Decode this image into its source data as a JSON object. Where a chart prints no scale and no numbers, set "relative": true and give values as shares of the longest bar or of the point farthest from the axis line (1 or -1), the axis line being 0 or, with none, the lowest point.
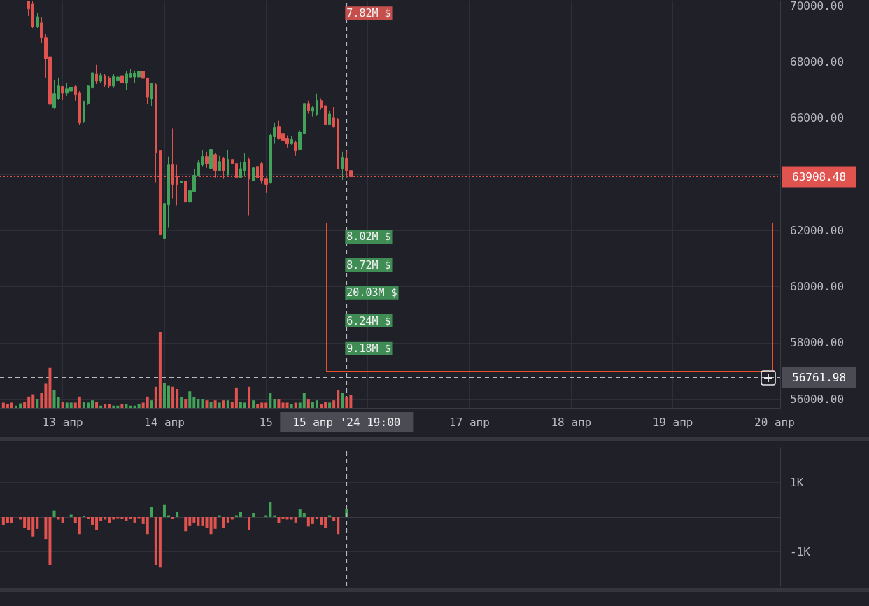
{
  "chart_data": [
    {
      "type": "candlestick",
      "x": [
        "2024-04-12T16:00",
        "2024-04-12T17:00",
        "2024-04-12T18:00",
        "2024-04-12T19:00",
        "2024-04-12T20:00",
        "2024-04-12T21:00",
        "2024-04-12T22:00",
        "2024-04-12T23:00",
        "2024-04-13T00:00",
        "2024-04-13T01:00",
        "2024-04-13T02:00",
        "2024-04-13T03:00",
        "2024-04-13T04:00",
        "2024-04-13T05:00",
        "2024-04-13T06:00",
        "2024-04-13T07:00",
        "2024-04-13T08:00",
        "2024-04-13T09:00",
        "2024-04-13T10:00",
        "2024-04-13T11:00",
        "2024-04-13T12:00",
        "2024-04-13T13:00",
        "2024-04-13T14:00",
        "2024-04-13T15:00",
        "2024-04-13T16:00",
        "2024-04-13T17:00",
        "2024-04-13T18:00",
        "2024-04-13T19:00",
        "2024-04-13T20:00",
        "2024-04-13T21:00",
        "2024-04-13T22:00",
        "2024-04-13T23:00",
        "2024-04-14T00:00",
        "2024-04-14T01:00",
        "2024-04-14T02:00",
        "2024-04-14T03:00",
        "2024-04-14T04:00",
        "2024-04-14T05:00",
        "2024-04-14T06:00",
        "2024-04-14T07:00",
        "2024-04-14T08:00",
        "2024-04-14T09:00",
        "2024-04-14T10:00",
        "2024-04-14T11:00",
        "2024-04-14T12:00",
        "2024-04-14T13:00",
        "2024-04-14T14:00",
        "2024-04-14T15:00",
        "2024-04-14T16:00",
        "2024-04-14T17:00",
        "2024-04-14T18:00",
        "2024-04-14T19:00",
        "2024-04-14T20:00",
        "2024-04-14T21:00",
        "2024-04-14T22:00",
        "2024-04-14T23:00",
        "2024-04-15T00:00",
        "2024-04-15T01:00",
        "2024-04-15T02:00",
        "2024-04-15T03:00",
        "2024-04-15T04:00",
        "2024-04-15T05:00",
        "2024-04-15T06:00",
        "2024-04-15T07:00",
        "2024-04-15T08:00",
        "2024-04-15T09:00",
        "2024-04-15T10:00",
        "2024-04-15T11:00",
        "2024-04-15T12:00",
        "2024-04-15T13:00",
        "2024-04-15T14:00",
        "2024-04-15T15:00",
        "2024-04-15T16:00",
        "2024-04-15T17:00",
        "2024-04-15T18:00",
        "2024-04-15T19:00",
        "2024-04-15T20:00"
      ],
      "ohlc": [
        [
          70150,
          70150,
          69630,
          69880
        ],
        [
          70050,
          70150,
          69200,
          69250
        ],
        [
          69250,
          69730,
          69200,
          69600
        ],
        [
          69380,
          69600,
          68680,
          68860
        ],
        [
          68860,
          68980,
          67440,
          68110
        ],
        [
          68180,
          68380,
          65030,
          66490
        ],
        [
          66370,
          67360,
          66320,
          66870
        ],
        [
          66690,
          67440,
          66640,
          67140
        ],
        [
          67120,
          67140,
          66640,
          66890
        ],
        [
          66890,
          67260,
          66790,
          67040
        ],
        [
          66960,
          67290,
          66770,
          67090
        ],
        [
          67120,
          67160,
          66620,
          66820
        ],
        [
          66890,
          66960,
          65750,
          65820
        ],
        [
          65870,
          66620,
          65820,
          66570
        ],
        [
          66520,
          67160,
          66470,
          67140
        ],
        [
          67070,
          67940,
          66990,
          67610
        ],
        [
          67560,
          67890,
          67210,
          67310
        ],
        [
          67310,
          67590,
          67240,
          67520
        ],
        [
          67510,
          67560,
          67110,
          67190
        ],
        [
          67430,
          67480,
          67060,
          67140
        ],
        [
          67140,
          67560,
          67070,
          67480
        ],
        [
          67320,
          67510,
          67290,
          67460
        ],
        [
          67510,
          67860,
          67240,
          67260
        ],
        [
          67240,
          67680,
          67000,
          67560
        ],
        [
          67460,
          67760,
          67420,
          67580
        ],
        [
          67460,
          67690,
          67250,
          67590
        ],
        [
          67460,
          67940,
          67360,
          67660
        ],
        [
          67670,
          67760,
          67360,
          67410
        ],
        [
          67410,
          67440,
          66490,
          66740
        ],
        [
          66690,
          67260,
          66440,
          67240
        ],
        [
          67190,
          67240,
          63710,
          64780
        ],
        [
          64830,
          64830,
          60620,
          61840
        ],
        [
          61720,
          63000,
          61640,
          62960
        ],
        [
          62910,
          64630,
          62090,
          64330
        ],
        [
          64330,
          65630,
          63140,
          63640
        ],
        [
          63910,
          64330,
          62890,
          63640
        ],
        [
          63700,
          64080,
          63260,
          63760
        ],
        [
          63760,
          63960,
          62960,
          63010
        ],
        [
          63010,
          63540,
          62100,
          63410
        ],
        [
          63380,
          64180,
          63380,
          63960
        ],
        [
          63960,
          64500,
          63910,
          64400
        ],
        [
          64330,
          64850,
          64280,
          64630
        ],
        [
          64630,
          64800,
          64230,
          64380
        ],
        [
          64210,
          64900,
          64200,
          64880
        ],
        [
          64700,
          64750,
          63880,
          64130
        ],
        [
          64130,
          64650,
          64100,
          64450
        ],
        [
          64560,
          64600,
          63830,
          64130
        ],
        [
          63980,
          64850,
          63930,
          64530
        ],
        [
          64530,
          64800,
          64330,
          64380
        ],
        [
          64380,
          64430,
          63380,
          63880
        ],
        [
          63880,
          64450,
          63850,
          64200
        ],
        [
          64130,
          64750,
          63910,
          64430
        ],
        [
          64530,
          64580,
          62540,
          63830
        ],
        [
          63760,
          64700,
          63760,
          64230
        ],
        [
          64280,
          64330,
          63780,
          63860
        ],
        [
          64380,
          64430,
          63660,
          63780
        ],
        [
          63830,
          63880,
          63330,
          63640
        ],
        [
          63710,
          65450,
          63660,
          65380
        ],
        [
          65330,
          65820,
          65080,
          65650
        ],
        [
          65700,
          65900,
          65230,
          65280
        ],
        [
          65450,
          65700,
          65000,
          65200
        ],
        [
          65280,
          65380,
          64950,
          65080
        ],
        [
          65080,
          65350,
          65050,
          65230
        ],
        [
          65130,
          65200,
          64650,
          64830
        ],
        [
          64880,
          65550,
          64880,
          65500
        ],
        [
          65450,
          66620,
          65380,
          66520
        ],
        [
          66520,
          66620,
          66150,
          66270
        ],
        [
          66240,
          66440,
          66050,
          66370
        ],
        [
          66120,
          66870,
          66070,
          66620
        ],
        [
          66620,
          66700,
          66300,
          66370
        ],
        [
          66440,
          66740,
          65750,
          65770
        ],
        [
          65770,
          66250,
          65750,
          66140
        ],
        [
          66020,
          66390,
          65650,
          65700
        ],
        [
          65950,
          66000,
          64200,
          64210
        ],
        [
          64210,
          64800,
          63800,
          64580
        ],
        [
          64560,
          64830,
          63880,
          64130
        ],
        [
          64130,
          64750,
          63310,
          63910
        ]
      ],
      "xlim": [
        "2024-04-12T09:12",
        "2024-04-20T01:20"
      ],
      "ylim": [
        55680,
        70170
      ],
      "xticks": [
        {
          "value": "2024-04-13",
          "label": "13 апр"
        },
        {
          "value": "2024-04-14",
          "label": "14 апр"
        },
        {
          "value": "2024-04-15",
          "label": "15"
        },
        {
          "value": "2024-04-16",
          "label": null
        },
        {
          "value": "2024-04-17",
          "label": "17 апр"
        },
        {
          "value": "2024-04-18",
          "label": "18 апр"
        },
        {
          "value": "2024-04-19",
          "label": "19 апр"
        },
        {
          "value": "2024-04-20",
          "label": "20 апр"
        }
      ],
      "yticks": [
        {
          "value": 56000,
          "label": "56000.00"
        },
        {
          "value": 58000,
          "label": "58000.00"
        },
        {
          "value": 60000,
          "label": "60000.00"
        },
        {
          "value": 62000,
          "label": "62000.00"
        },
        {
          "value": 64000,
          "label": null
        },
        {
          "value": 66000,
          "label": "66000.00"
        },
        {
          "value": 68000,
          "label": "68000.00"
        },
        {
          "value": 70000,
          "label": "70000.00"
        }
      ],
      "grid": true,
      "ref_lines": [
        {
          "axis": "y",
          "value": 63908.48,
          "label": "63908.48",
          "color": "#e0534f",
          "line_style": "dotted"
        },
        {
          "axis": "y",
          "value": 56761.98,
          "label": "56761.98",
          "color": "#b9bac0",
          "line_style": "dashed"
        },
        {
          "axis": "x",
          "value": "2024-04-15T19:00",
          "label": "15 апр '24 19:00",
          "color": "#b9bac0",
          "line_style": "dashed"
        }
      ],
      "annotations": [
        {
          "text": "7.82M $",
          "x": "2024-04-15T19:00",
          "y": 69730
        },
        {
          "text": "8.02M $",
          "x": "2024-04-15T19:00",
          "y": 61770
        },
        {
          "text": "8.72M $",
          "x": "2024-04-15T19:00",
          "y": 60770
        },
        {
          "text": "20.03M $",
          "x": "2024-04-15T19:00",
          "y": 59780
        },
        {
          "text": "6.24M $",
          "x": "2024-04-15T19:00",
          "y": 58780
        },
        {
          "text": "9.18M $",
          "x": "2024-04-15T19:00",
          "y": 57790
        }
      ]
    },
    {
      "type": "bar",
      "relative": true,
      "tick_labels": false,
      "x": [
        "2024-04-12T10:00",
        "2024-04-12T11:00",
        "2024-04-12T12:00",
        "2024-04-12T13:00",
        "2024-04-12T14:00",
        "2024-04-12T15:00",
        "2024-04-12T16:00",
        "2024-04-12T17:00",
        "2024-04-12T18:00",
        "2024-04-12T19:00",
        "2024-04-12T20:00",
        "2024-04-12T21:00",
        "2024-04-12T22:00",
        "2024-04-12T23:00",
        "2024-04-13T00:00",
        "2024-04-13T01:00",
        "2024-04-13T02:00",
        "2024-04-13T03:00",
        "2024-04-13T04:00",
        "2024-04-13T05:00",
        "2024-04-13T06:00",
        "2024-04-13T07:00",
        "2024-04-13T08:00",
        "2024-04-13T09:00",
        "2024-04-13T10:00",
        "2024-04-13T11:00",
        "2024-04-13T12:00",
        "2024-04-13T13:00",
        "2024-04-13T14:00",
        "2024-04-13T15:00",
        "2024-04-13T16:00",
        "2024-04-13T17:00",
        "2024-04-13T18:00",
        "2024-04-13T19:00",
        "2024-04-13T20:00",
        "2024-04-13T21:00",
        "2024-04-13T22:00",
        "2024-04-13T23:00",
        "2024-04-14T00:00",
        "2024-04-14T01:00",
        "2024-04-14T02:00",
        "2024-04-14T03:00",
        "2024-04-14T04:00",
        "2024-04-14T05:00",
        "2024-04-14T06:00",
        "2024-04-14T07:00",
        "2024-04-14T08:00",
        "2024-04-14T09:00",
        "2024-04-14T10:00",
        "2024-04-14T11:00",
        "2024-04-14T12:00",
        "2024-04-14T13:00",
        "2024-04-14T14:00",
        "2024-04-14T15:00",
        "2024-04-14T16:00",
        "2024-04-14T17:00",
        "2024-04-14T18:00",
        "2024-04-14T19:00",
        "2024-04-14T20:00",
        "2024-04-14T21:00",
        "2024-04-14T22:00",
        "2024-04-14T23:00",
        "2024-04-15T00:00",
        "2024-04-15T01:00",
        "2024-04-15T02:00",
        "2024-04-15T03:00",
        "2024-04-15T04:00",
        "2024-04-15T05:00",
        "2024-04-15T06:00",
        "2024-04-15T07:00",
        "2024-04-15T08:00",
        "2024-04-15T09:00",
        "2024-04-15T10:00",
        "2024-04-15T11:00",
        "2024-04-15T12:00",
        "2024-04-15T13:00",
        "2024-04-15T14:00",
        "2024-04-15T15:00",
        "2024-04-15T16:00",
        "2024-04-15T17:00",
        "2024-04-15T18:00",
        "2024-04-15T19:00",
        "2024-04-15T20:00"
      ],
      "xlim": [
        "2024-04-12T09:12",
        "2024-04-20T01:20"
      ],
      "values": [
        0.07,
        0.05,
        0.07,
        0.03,
        0.06,
        0.08,
        0.15,
        0.18,
        0.12,
        0.2,
        0.32,
        0.53,
        0.24,
        0.14,
        0.08,
        0.07,
        0.07,
        0.07,
        0.15,
        0.08,
        0.07,
        0.1,
        0.08,
        0.03,
        0.05,
        0.05,
        0.03,
        0.03,
        0.05,
        0.05,
        0.03,
        0.03,
        0.05,
        0.07,
        0.15,
        0.1,
        0.28,
        1,
        0.33,
        0.3,
        0.28,
        0.25,
        0.14,
        0.12,
        0.22,
        0.14,
        0.12,
        0.12,
        0.1,
        0.08,
        0.1,
        0.07,
        0.1,
        0.1,
        0.08,
        0.27,
        0.08,
        0.07,
        0.28,
        0.1,
        0.05,
        0.07,
        0.07,
        0.2,
        0.12,
        0.12,
        0.07,
        0.07,
        0.05,
        0.07,
        0.07,
        0.2,
        0.12,
        0.08,
        0.1,
        0.05,
        0.08,
        0.07,
        0.1,
        0.24,
        0.2,
        0.14,
        0.17
      ],
      "colors": [
        "#e0534f",
        "#e0534f",
        "#e0534f",
        "#43a25a",
        "#43a25a",
        "#e0534f",
        "#e0534f",
        "#e0534f",
        "#43a25a",
        "#e0534f",
        "#e0534f",
        "#e0534f",
        "#43a25a",
        "#43a25a",
        "#e0534f",
        "#43a25a",
        "#43a25a",
        "#e0534f",
        "#e0534f",
        "#43a25a",
        "#43a25a",
        "#43a25a",
        "#e0534f",
        "#43a25a",
        "#e0534f",
        "#e0534f",
        "#43a25a",
        "#43a25a",
        "#e0534f",
        "#43a25a",
        "#43a25a",
        "#43a25a",
        "#43a25a",
        "#e0534f",
        "#e0534f",
        "#43a25a",
        "#e0534f",
        "#e0534f",
        "#43a25a",
        "#43a25a",
        "#e0534f",
        "#e0534f",
        "#43a25a",
        "#e0534f",
        "#43a25a",
        "#43a25a",
        "#43a25a",
        "#43a25a",
        "#e0534f",
        "#43a25a",
        "#e0534f",
        "#43a25a",
        "#e0534f",
        "#43a25a",
        "#e0534f",
        "#e0534f",
        "#43a25a",
        "#43a25a",
        "#e0534f",
        "#43a25a",
        "#e0534f",
        "#e0534f",
        "#e0534f",
        "#43a25a",
        "#43a25a",
        "#e0534f",
        "#e0534f",
        "#e0534f",
        "#43a25a",
        "#e0534f",
        "#43a25a",
        "#43a25a",
        "#e0534f",
        "#43a25a",
        "#43a25a",
        "#e0534f",
        "#e0534f",
        "#43a25a",
        "#e0534f",
        "#e0534f",
        "#43a25a",
        "#e0534f",
        "#e0534f"
      ]
    },
    {
      "type": "bar",
      "tick_labels": "y",
      "grid": "y",
      "x": [
        "2024-04-12T10:00",
        "2024-04-12T11:00",
        "2024-04-12T12:00",
        "2024-04-12T13:00",
        "2024-04-12T14:00",
        "2024-04-12T15:00",
        "2024-04-12T16:00",
        "2024-04-12T17:00",
        "2024-04-12T18:00",
        "2024-04-12T19:00",
        "2024-04-12T20:00",
        "2024-04-12T21:00",
        "2024-04-12T22:00",
        "2024-04-12T23:00",
        "2024-04-13T00:00",
        "2024-04-13T01:00",
        "2024-04-13T02:00",
        "2024-04-13T03:00",
        "2024-04-13T04:00",
        "2024-04-13T05:00",
        "2024-04-13T06:00",
        "2024-04-13T07:00",
        "2024-04-13T08:00",
        "2024-04-13T09:00",
        "2024-04-13T10:00",
        "2024-04-13T11:00",
        "2024-04-13T12:00",
        "2024-04-13T13:00",
        "2024-04-13T14:00",
        "2024-04-13T15:00",
        "2024-04-13T16:00",
        "2024-04-13T17:00",
        "2024-04-13T18:00",
        "2024-04-13T19:00",
        "2024-04-13T20:00",
        "2024-04-13T21:00",
        "2024-04-13T22:00",
        "2024-04-13T23:00",
        "2024-04-14T00:00",
        "2024-04-14T01:00",
        "2024-04-14T02:00",
        "2024-04-14T03:00",
        "2024-04-14T04:00",
        "2024-04-14T05:00",
        "2024-04-14T06:00",
        "2024-04-14T07:00",
        "2024-04-14T08:00",
        "2024-04-14T09:00",
        "2024-04-14T10:00",
        "2024-04-14T11:00",
        "2024-04-14T12:00",
        "2024-04-14T13:00",
        "2024-04-14T14:00",
        "2024-04-14T15:00",
        "2024-04-14T16:00",
        "2024-04-14T17:00",
        "2024-04-14T18:00",
        "2024-04-14T19:00",
        "2024-04-14T20:00",
        "2024-04-14T21:00",
        "2024-04-14T22:00",
        "2024-04-14T23:00",
        "2024-04-15T00:00",
        "2024-04-15T01:00",
        "2024-04-15T02:00",
        "2024-04-15T03:00",
        "2024-04-15T04:00",
        "2024-04-15T05:00",
        "2024-04-15T06:00",
        "2024-04-15T07:00",
        "2024-04-15T08:00",
        "2024-04-15T09:00",
        "2024-04-15T10:00",
        "2024-04-15T11:00",
        "2024-04-15T12:00",
        "2024-04-15T13:00",
        "2024-04-15T14:00",
        "2024-04-15T15:00",
        "2024-04-15T16:00",
        "2024-04-15T17:00",
        "2024-04-15T18:00",
        "2024-04-15T19:00"
      ],
      "xlim": [
        "2024-04-12T09:12",
        "2024-04-20T01:20"
      ],
      "ylim": [
        -2000,
        2000
      ],
      "yticks": [
        {
          "value": -1000,
          "label": "-1K"
        },
        {
          "value": 1000,
          "label": "1K"
        }
      ],
      "values": [
        -220,
        -180,
        -180,
        null,
        -70,
        -310,
        -370,
        -560,
        -340,
        null,
        -630,
        -1390,
        190,
        -70,
        -180,
        null,
        70,
        -180,
        -490,
        30,
        -50,
        -220,
        -370,
        -120,
        -70,
        -180,
        -70,
        -30,
        -50,
        -120,
        -50,
        -160,
        -30,
        -200,
        -490,
        290,
        -1390,
        -1440,
        370,
        50,
        -50,
        150,
        null,
        -410,
        -240,
        -160,
        -240,
        -240,
        -310,
        -490,
        -340,
        50,
        -310,
        -160,
        -70,
        50,
        160,
        null,
        -370,
        120,
        null,
        null,
        50,
        440,
        50,
        -180,
        -50,
        -70,
        -70,
        -160,
        220,
        120,
        -270,
        -200,
        -50,
        -220,
        -310,
        50,
        -120,
        -490,
        null,
        240
      ],
      "colors": [
        "#e0534f",
        "#e0534f",
        "#e0534f",
        "#e0534f",
        "#e0534f",
        "#e0534f",
        "#e0534f",
        "#e0534f",
        "#e0534f",
        "#e0534f",
        "#e0534f",
        "#e0534f",
        "#43a25a",
        "#e0534f",
        "#e0534f",
        "#e0534f",
        "#43a25a",
        "#e0534f",
        "#e0534f",
        "#43a25a",
        "#e0534f",
        "#e0534f",
        "#e0534f",
        "#e0534f",
        "#e0534f",
        "#e0534f",
        "#e0534f",
        "#e0534f",
        "#e0534f",
        "#e0534f",
        "#e0534f",
        "#e0534f",
        "#e0534f",
        "#e0534f",
        "#e0534f",
        "#43a25a",
        "#e0534f",
        "#e0534f",
        "#43a25a",
        "#43a25a",
        "#e0534f",
        "#43a25a",
        "#e0534f",
        "#e0534f",
        "#e0534f",
        "#e0534f",
        "#e0534f",
        "#e0534f",
        "#e0534f",
        "#e0534f",
        "#e0534f",
        "#43a25a",
        "#e0534f",
        "#e0534f",
        "#e0534f",
        "#43a25a",
        "#43a25a",
        "#e0534f",
        "#e0534f",
        "#43a25a",
        "#e0534f",
        "#e0534f",
        "#43a25a",
        "#43a25a",
        "#43a25a",
        "#e0534f",
        "#e0534f",
        "#e0534f",
        "#e0534f",
        "#e0534f",
        "#43a25a",
        "#43a25a",
        "#e0534f",
        "#e0534f",
        "#e0534f",
        "#e0534f",
        "#e0534f",
        "#43a25a",
        "#e0534f",
        "#e0534f",
        "#e0534f",
        "#43a25a"
      ],
      "ref_lines": [
        {
          "axis": "x",
          "value": "2024-04-15T19:00",
          "color": "#b9bac0",
          "line_style": "dashed"
        }
      ]
    }
  ]
}
